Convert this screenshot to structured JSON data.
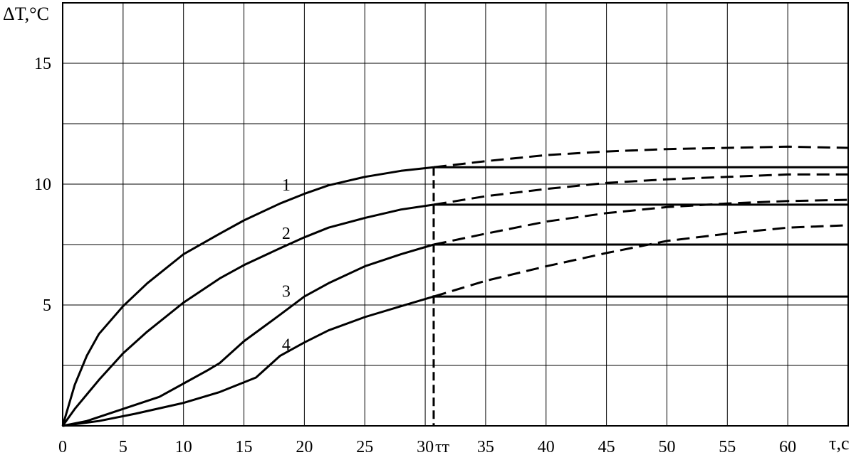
{
  "chart_data": {
    "type": "line",
    "xlabel": "τ,c",
    "ylabel": "ΔT,°C",
    "xlim": [
      0,
      65
    ],
    "ylim": [
      0,
      17.5
    ],
    "grid": true,
    "x_ticks": [
      0,
      5,
      10,
      15,
      20,
      25,
      30,
      35,
      40,
      45,
      50,
      55,
      60
    ],
    "x_tick_labels": [
      "0",
      "5",
      "10",
      "15",
      "20",
      "25",
      "30",
      "35",
      "40",
      "45",
      "50",
      "55",
      "60"
    ],
    "y_ticks": [
      5,
      10,
      15
    ],
    "y_tick_labels": [
      "5",
      "10",
      "15"
    ],
    "marker": {
      "label": "τт",
      "x": 30.7
    },
    "series": [
      {
        "name": "1",
        "solid": [
          [
            0,
            0
          ],
          [
            1,
            1.7
          ],
          [
            2,
            2.9
          ],
          [
            3,
            3.8
          ],
          [
            5,
            4.95
          ],
          [
            7,
            5.9
          ],
          [
            10,
            7.1
          ],
          [
            13,
            7.95
          ],
          [
            15,
            8.5
          ],
          [
            18,
            9.2
          ],
          [
            20,
            9.6
          ],
          [
            22,
            9.95
          ],
          [
            25,
            10.3
          ],
          [
            28,
            10.55
          ],
          [
            30.7,
            10.7
          ]
        ],
        "plateau": 10.7,
        "dashed": [
          [
            30.7,
            10.7
          ],
          [
            35,
            10.95
          ],
          [
            40,
            11.2
          ],
          [
            45,
            11.35
          ],
          [
            50,
            11.45
          ],
          [
            55,
            11.5
          ],
          [
            60,
            11.55
          ],
          [
            65,
            11.5
          ]
        ]
      },
      {
        "name": "2",
        "solid": [
          [
            0,
            0
          ],
          [
            1,
            0.7
          ],
          [
            3,
            1.9
          ],
          [
            5,
            3.0
          ],
          [
            7,
            3.9
          ],
          [
            10,
            5.1
          ],
          [
            13,
            6.1
          ],
          [
            15,
            6.65
          ],
          [
            18,
            7.35
          ],
          [
            20,
            7.8
          ],
          [
            22,
            8.2
          ],
          [
            25,
            8.6
          ],
          [
            28,
            8.95
          ],
          [
            30.7,
            9.15
          ]
        ],
        "plateau": 9.15,
        "dashed": [
          [
            30.7,
            9.15
          ],
          [
            35,
            9.5
          ],
          [
            40,
            9.8
          ],
          [
            45,
            10.05
          ],
          [
            50,
            10.2
          ],
          [
            55,
            10.3
          ],
          [
            60,
            10.4
          ],
          [
            65,
            10.4
          ]
        ]
      },
      {
        "name": "3",
        "solid": [
          [
            0,
            0
          ],
          [
            2,
            0.2
          ],
          [
            5,
            0.7
          ],
          [
            8,
            1.2
          ],
          [
            10,
            1.75
          ],
          [
            12,
            2.3
          ],
          [
            13,
            2.6
          ],
          [
            15,
            3.5
          ],
          [
            18,
            4.6
          ],
          [
            20,
            5.35
          ],
          [
            22,
            5.9
          ],
          [
            25,
            6.6
          ],
          [
            28,
            7.1
          ],
          [
            30.7,
            7.5
          ]
        ],
        "plateau": 7.5,
        "dashed": [
          [
            30.7,
            7.5
          ],
          [
            35,
            7.95
          ],
          [
            40,
            8.45
          ],
          [
            45,
            8.8
          ],
          [
            50,
            9.05
          ],
          [
            55,
            9.2
          ],
          [
            60,
            9.3
          ],
          [
            65,
            9.35
          ]
        ]
      },
      {
        "name": "4",
        "solid": [
          [
            0,
            0
          ],
          [
            3,
            0.2
          ],
          [
            6,
            0.5
          ],
          [
            10,
            0.95
          ],
          [
            13,
            1.4
          ],
          [
            16,
            2.0
          ],
          [
            18,
            2.9
          ],
          [
            20,
            3.45
          ],
          [
            22,
            3.95
          ],
          [
            25,
            4.5
          ],
          [
            28,
            4.95
          ],
          [
            30.7,
            5.35
          ]
        ],
        "plateau": 5.35,
        "dashed": [
          [
            30.7,
            5.35
          ],
          [
            35,
            6.0
          ],
          [
            40,
            6.6
          ],
          [
            45,
            7.15
          ],
          [
            50,
            7.65
          ],
          [
            55,
            7.95
          ],
          [
            60,
            8.2
          ],
          [
            65,
            8.3
          ]
        ]
      }
    ],
    "curve_labels": [
      {
        "text": "1",
        "x": 18.5,
        "y": 10.0
      },
      {
        "text": "2",
        "x": 18.5,
        "y": 8.0
      },
      {
        "text": "3",
        "x": 18.5,
        "y": 5.6
      },
      {
        "text": "4",
        "x": 18.5,
        "y": 3.4
      }
    ]
  }
}
